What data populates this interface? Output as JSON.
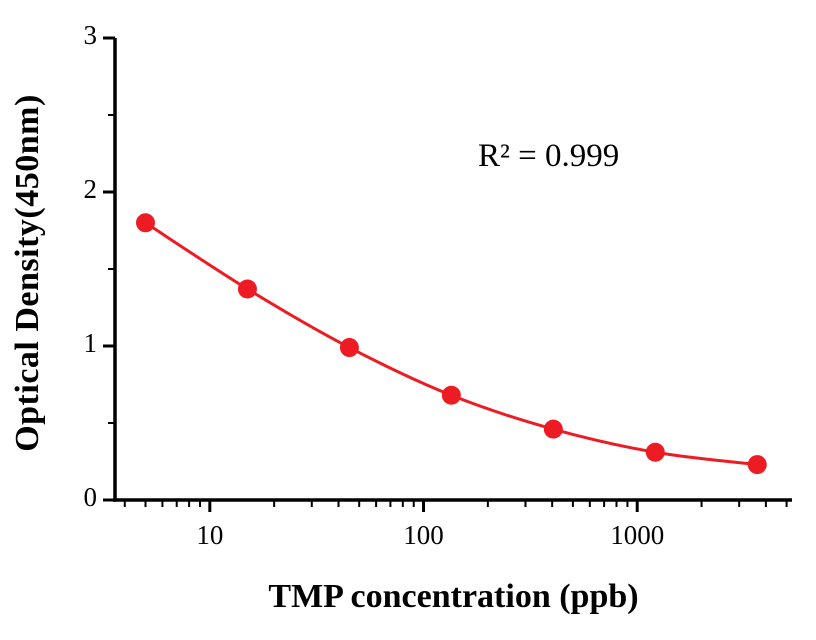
{
  "chart_data": {
    "type": "scatter",
    "title": "",
    "xlabel": "TMP concentration (ppb)",
    "ylabel": "Optical Density(450nm)",
    "annotation": "R² = 0.999",
    "x": [
      5,
      15,
      45,
      135,
      405,
      1215,
      3645
    ],
    "y": [
      1.8,
      1.37,
      0.99,
      0.68,
      0.46,
      0.31,
      0.23
    ],
    "xscale": "log",
    "xlim": [
      3.6,
      5300
    ],
    "ylim": [
      0,
      3
    ],
    "x_major_ticks": [
      10,
      100,
      1000
    ],
    "y_major_ticks": [
      0,
      1,
      2,
      3
    ],
    "y_minor_step": 0.5,
    "grid": "off",
    "legend": "none",
    "marker_color": "#ed1c24",
    "line_color": "#ed1c24",
    "axis_color": "#000000"
  }
}
